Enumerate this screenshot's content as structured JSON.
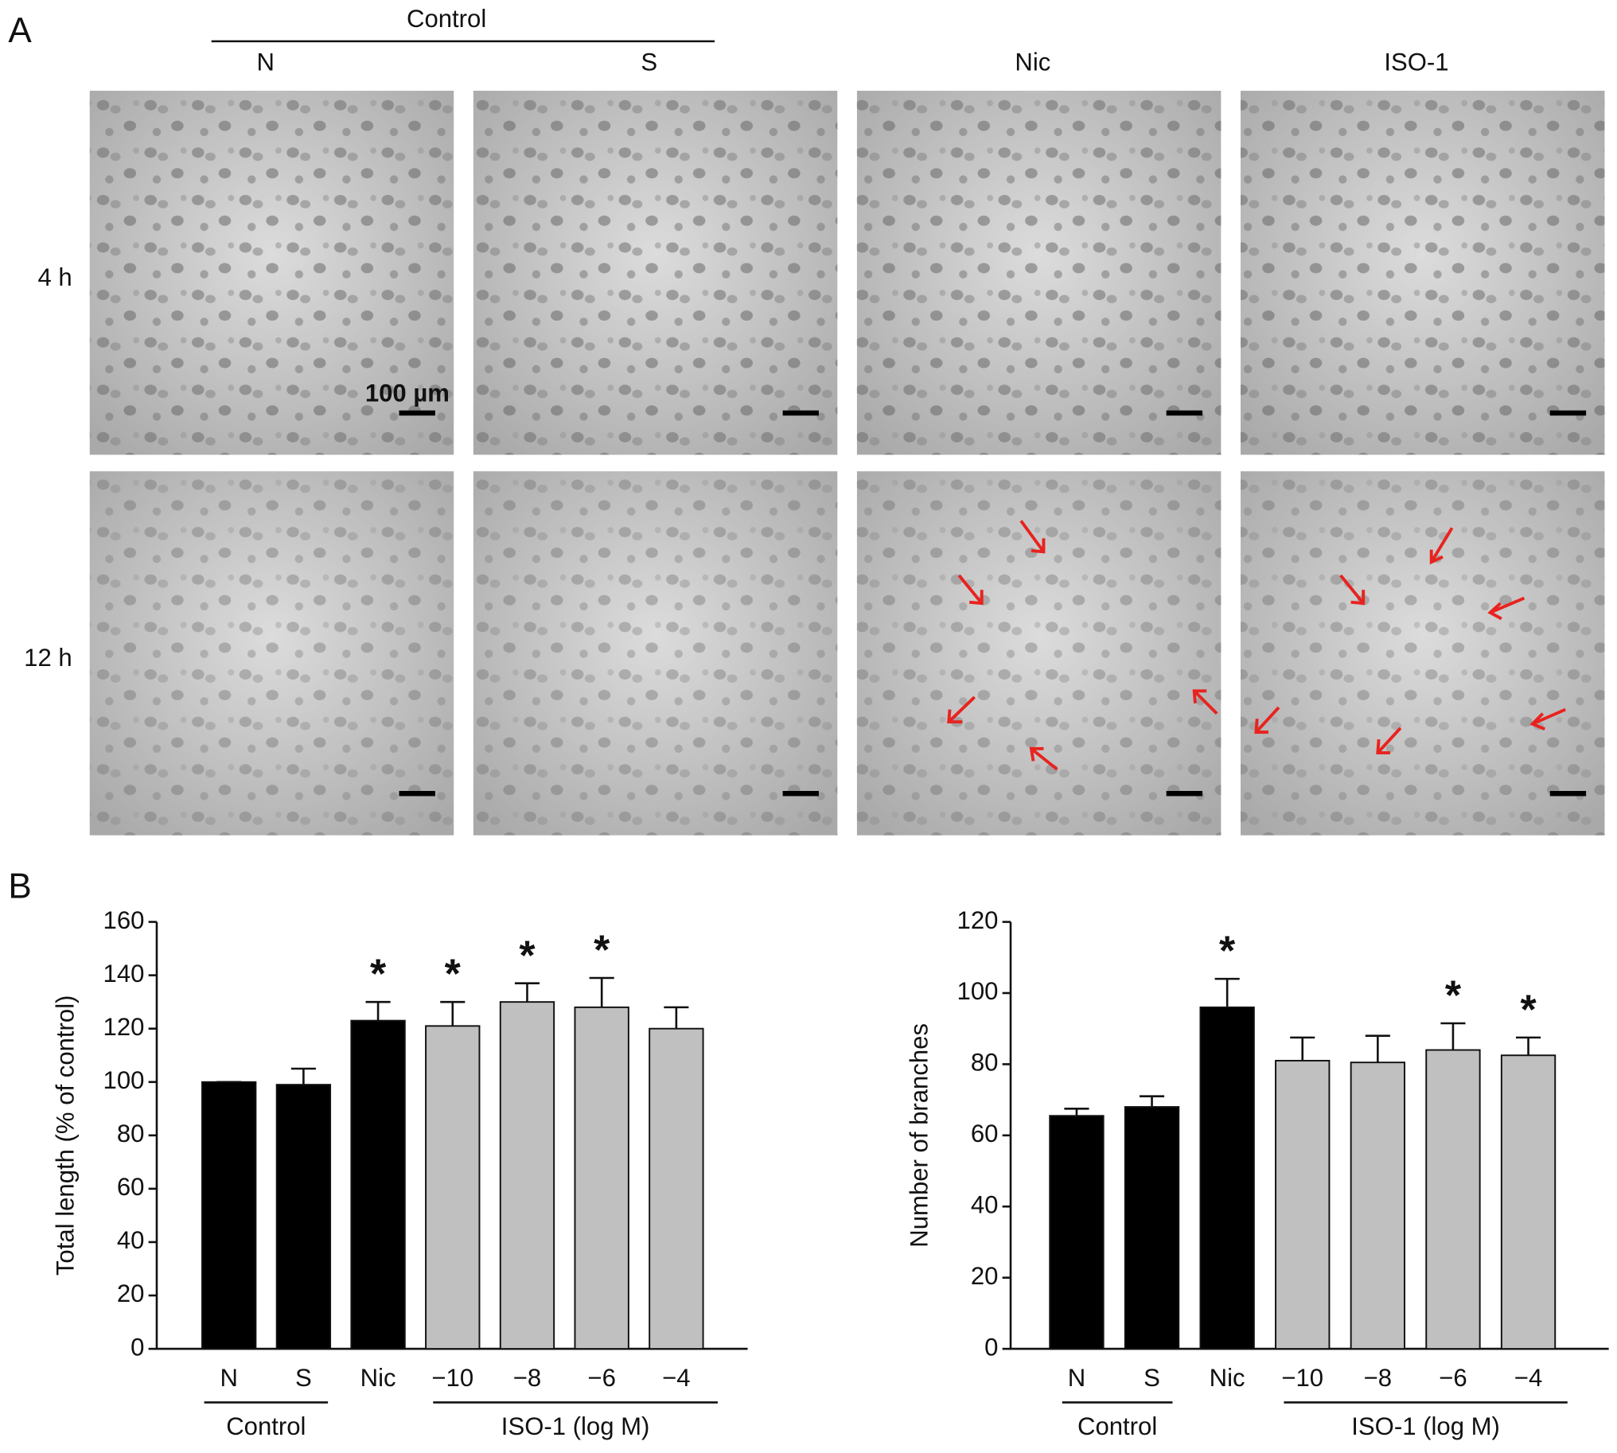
{
  "panel_labels": [
    "A",
    "B"
  ],
  "panel_a": {
    "group_label": "Control",
    "columns": [
      "N",
      "S",
      "Nic",
      "ISO-1"
    ],
    "rows": [
      "4 h",
      "12 h"
    ],
    "scale_bar": "100 µm"
  },
  "chart_data": [
    {
      "type": "bar",
      "ylabel": "Total length (% of control)",
      "categories": [
        "N",
        "S",
        "Nic",
        "−10",
        "−8",
        "−6",
        "−4"
      ],
      "values": [
        100,
        99,
        123,
        121,
        130,
        128,
        120
      ],
      "errors": [
        0,
        6,
        7,
        9,
        7,
        11,
        8
      ],
      "colors": [
        "#000000",
        "#000000",
        "#000000",
        "#c0c0c0",
        "#c0c0c0",
        "#c0c0c0",
        "#c0c0c0"
      ],
      "significance": [
        null,
        null,
        "*",
        "*",
        "*",
        "*",
        null
      ],
      "groups": [
        "Control",
        "ISO-1 (log M)"
      ],
      "ylim": [
        0,
        160
      ],
      "yticks": [
        0,
        20,
        40,
        60,
        80,
        100,
        120,
        140,
        160
      ]
    },
    {
      "type": "bar",
      "ylabel": "Number of branches",
      "categories": [
        "N",
        "S",
        "Nic",
        "−10",
        "−8",
        "−6",
        "−4"
      ],
      "values": [
        65.5,
        68,
        96,
        81,
        80.5,
        84,
        82.5
      ],
      "errors": [
        2,
        3,
        8,
        6.5,
        7.5,
        7.5,
        5
      ],
      "colors": [
        "#000000",
        "#000000",
        "#000000",
        "#c0c0c0",
        "#c0c0c0",
        "#c0c0c0",
        "#c0c0c0"
      ],
      "significance": [
        null,
        null,
        "*",
        null,
        null,
        "*",
        "*"
      ],
      "groups": [
        "Control",
        "ISO-1 (log M)"
      ],
      "ylim": [
        0,
        120
      ],
      "yticks": [
        0,
        20,
        40,
        60,
        80,
        100,
        120
      ]
    }
  ]
}
